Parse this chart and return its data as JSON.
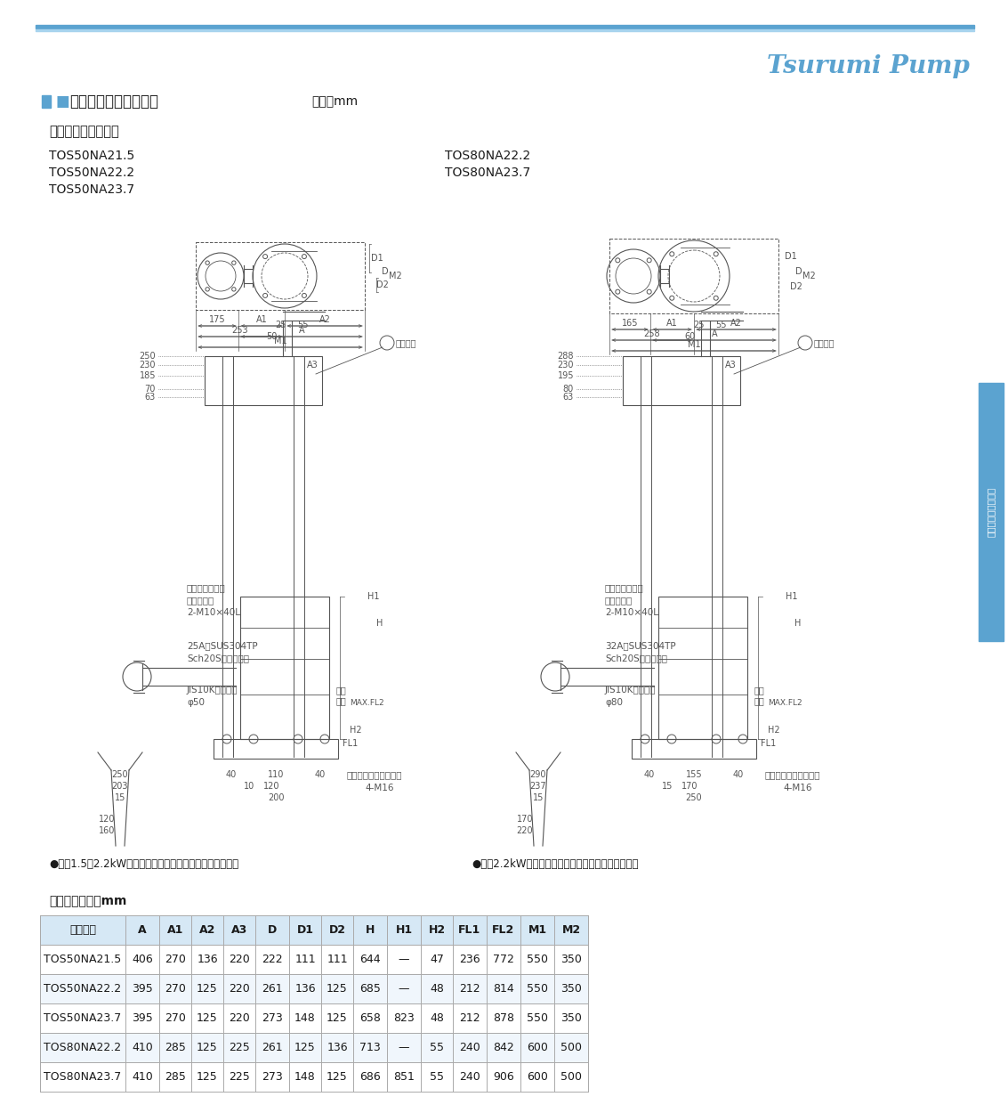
{
  "title_brand": "Tsurumi Pump",
  "header_line_color": "#5ba3d0",
  "sidebar_color": "#5ba3d0",
  "section_title_square": "■",
  "section_title_text": "外形据付寸法図（例）",
  "section_unit": "単位：mm",
  "subtitle": "自動形着脱装置仕様",
  "left_models": [
    "TOS50NA21.5",
    "TOS50NA22.2",
    "TOS50NA23.7"
  ],
  "right_models_label1": "TOS80NA22.2",
  "right_models_label2": "TOS80NA23.7",
  "note_left": "●出力1.5・2.2kWについては、１点吊り構造となります。",
  "note_right": "●出力2.2kWについては、１点吊り構造となります。",
  "dim_table_title": "寸法表　単位：mm",
  "table_headers": [
    "型　　式",
    "A",
    "A1",
    "A2",
    "A3",
    "D",
    "D1",
    "D2",
    "H",
    "H1",
    "H2",
    "FL1",
    "FL2",
    "M1",
    "M2"
  ],
  "table_data": [
    [
      "TOS50NA21.5",
      "406",
      "270",
      "136",
      "220",
      "222",
      "111",
      "111",
      "644",
      "—",
      "47",
      "236",
      "772",
      "550",
      "350"
    ],
    [
      "TOS50NA22.2",
      "395",
      "270",
      "125",
      "220",
      "261",
      "136",
      "125",
      "685",
      "—",
      "48",
      "212",
      "814",
      "550",
      "350"
    ],
    [
      "TOS50NA23.7",
      "395",
      "270",
      "125",
      "220",
      "273",
      "148",
      "125",
      "658",
      "823",
      "48",
      "212",
      "878",
      "550",
      "350"
    ],
    [
      "TOS80NA22.2",
      "410",
      "285",
      "125",
      "225",
      "261",
      "125",
      "136",
      "713",
      "—",
      "55",
      "240",
      "842",
      "600",
      "500"
    ],
    [
      "TOS80NA23.7",
      "410",
      "285",
      "125",
      "225",
      "273",
      "148",
      "125",
      "686",
      "851",
      "55",
      "240",
      "906",
      "600",
      "500"
    ]
  ],
  "table_header_bg": "#d6e8f5",
  "table_row_bg_white": "#ffffff",
  "table_row_bg_light": "#f0f6fc",
  "table_border": "#aaaaaa",
  "bg_color": "#ffffff",
  "text_color": "#1a1a1a",
  "drawing_color": "#555555",
  "sidebar_text": "設備編・水中ポンプ"
}
